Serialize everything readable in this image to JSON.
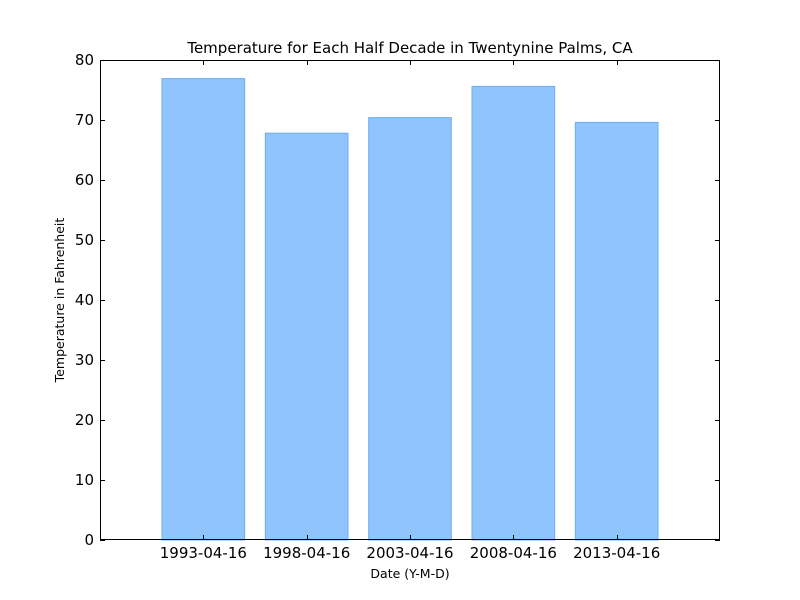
{
  "chart_data": {
    "type": "bar",
    "title": "Temperature for Each Half Decade in Twentynine Palms, CA",
    "xlabel": "Date (Y-M-D)",
    "ylabel": "Temperature in Fahrenheit",
    "categories": [
      "1993-04-16",
      "1998-04-16",
      "2003-04-16",
      "2008-04-16",
      "2013-04-16"
    ],
    "values": [
      76.9,
      67.8,
      70.4,
      75.6,
      69.6
    ],
    "ylim": [
      0,
      80
    ],
    "yticks": [
      0,
      10,
      20,
      30,
      40,
      50,
      60,
      70,
      80
    ],
    "grid": false,
    "bar_color": "#8fc4fd",
    "bar_edge_color": "#6aaef3"
  }
}
